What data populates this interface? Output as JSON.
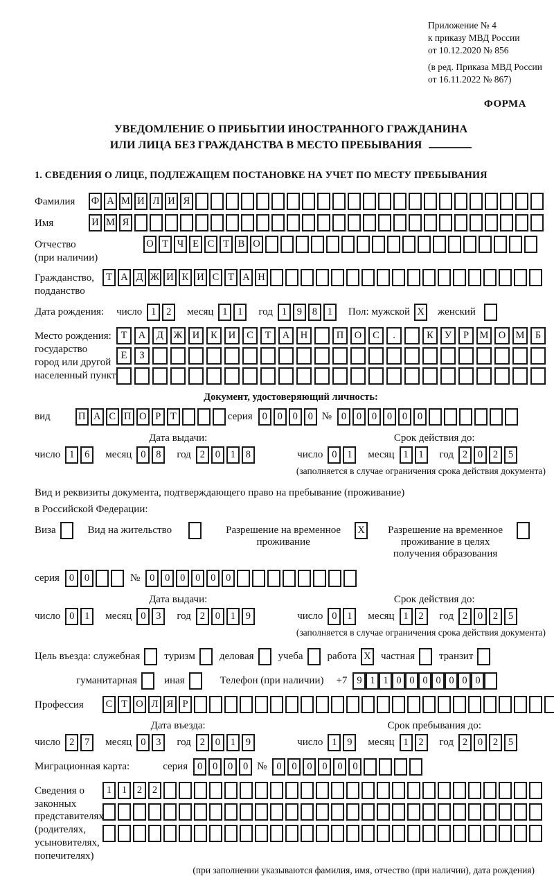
{
  "header": {
    "ref_lines": "Приложение № 4\nк приказу МВД России\nот 10.12.2020 № 856",
    "ref_lines2": "(в ред. Приказа МВД России\nот 16.11.2022 № 867)",
    "form_label": "ФОРМА",
    "title_line1": "УВЕДОМЛЕНИЕ О ПРИБЫТИИ ИНОСТРАННОГО ГРАЖДАНИНА",
    "title_line2": "ИЛИ ЛИЦА БЕЗ ГРАЖДАНСТВА В МЕСТО ПРЕБЫВАНИЯ",
    "section1_heading": "1. СВЕДЕНИЯ О ЛИЦЕ, ПОДЛЕЖАЩЕМ ПОСТАНОВКЕ НА УЧЕТ ПО МЕСТУ ПРЕБЫВАНИЯ"
  },
  "labels": {
    "surname": "Фамилия",
    "firstname": "Имя",
    "patronymic": "Отчество\n(при наличии)",
    "citizenship": "Гражданство,\nподданство",
    "birthdate": "Дата рождения:",
    "day": "число",
    "month": "месяц",
    "year": "год",
    "sex_male": "Пол: мужской",
    "sex_female": "женский",
    "birthplace": "Место рождения:\nгосударство\nгород или другой\nнаселенный пункт",
    "id_doc_heading": "Документ, удостоверяющий личность:",
    "doc_type": "вид",
    "series": "серия",
    "number": "№",
    "issue_date": "Дата выдачи:",
    "valid_until": "Срок действия до:",
    "valid_note": "(заполняется в случае ограничения срока действия документа)",
    "right_doc_line1": "Вид и реквизиты документа, подтверждающего право на пребывание (проживание)",
    "right_doc_line2": "в Российской Федерации:",
    "visa": "Виза",
    "residence_permit": "Вид на жительство",
    "temp_residence": "Разрешение на временное\nпроживание",
    "temp_residence_edu": "Разрешение на временное\nпроживание в целях\nполучения образования",
    "purpose": "Цель въезда: служебная",
    "tourism": "туризм",
    "business": "деловая",
    "study": "учеба",
    "work": "работа",
    "private": "частная",
    "transit": "транзит",
    "humanitarian": "гуманитарная",
    "other": "иная",
    "phone": "Телефон (при наличии)",
    "phone_prefix": "+7",
    "profession": "Профессия",
    "entry_date": "Дата въезда:",
    "stay_until": "Срок пребывания до:",
    "migration_card": "Миграционная карта:",
    "legal_reps": "Сведения о\nзаконных\nпредставителях\n(родителях,\nусыновителях,\nпопечителях)",
    "legal_note": "(при заполнении указываются фамилия, имя, отчество (при наличии), дата рождения)"
  },
  "boxfields": {
    "surname": {
      "value": "ФАМИЛИЯ",
      "count": 30
    },
    "firstname": {
      "value": "ИМЯ",
      "count": 30
    },
    "patronymic": {
      "value": "ОТЧЕСТВО",
      "count": 26
    },
    "citizenship": {
      "value": "ТАДЖИКИСТАН",
      "count": 29
    },
    "sex_male": {
      "value": "X",
      "count": 1
    },
    "sex_female": {
      "value": "",
      "count": 1
    },
    "birthplace1": {
      "value": "ТАДЖИКИСТАН ПОС. КУРМОМБ",
      "count": 24,
      "wide": true
    },
    "birthplace2": {
      "value": "ЕЗ",
      "count": 24,
      "wide": true
    },
    "birthplace3": {
      "value": "",
      "count": 24,
      "wide": true
    },
    "id_type": {
      "value": "ПАСПОРТ",
      "count": 10
    },
    "id_series": {
      "value": "0000",
      "count": 4
    },
    "id_number": {
      "value": "000000",
      "count": 12
    },
    "visa_cb": {
      "value": "",
      "count": 1
    },
    "residence_cb": {
      "value": "",
      "count": 1
    },
    "temp_residence_cb": {
      "value": "X",
      "count": 1
    },
    "temp_residence_edu_cb": {
      "value": "",
      "count": 1
    },
    "permit_series": {
      "value": "00",
      "count": 4
    },
    "permit_number": {
      "value": "000000",
      "count": 14
    },
    "purpose_official": {
      "value": "",
      "count": 1
    },
    "purpose_tourism": {
      "value": "",
      "count": 1
    },
    "purpose_business": {
      "value": "",
      "count": 1
    },
    "purpose_study": {
      "value": "",
      "count": 1
    },
    "purpose_work": {
      "value": "X",
      "count": 1
    },
    "purpose_private": {
      "value": "",
      "count": 1
    },
    "purpose_transit": {
      "value": "",
      "count": 1
    },
    "purpose_humanitarian": {
      "value": "",
      "count": 1
    },
    "purpose_other": {
      "value": "",
      "count": 1
    },
    "phone_digits": {
      "value": "9110000000",
      "count": 11
    },
    "profession": {
      "value": "СТОЛЯР",
      "count": 30
    },
    "mig_series": {
      "value": "0000",
      "count": 4
    },
    "mig_number": {
      "value": "000000",
      "count": 10
    },
    "legal1": {
      "value": "1122",
      "count": 29
    },
    "legal2": {
      "value": "",
      "count": 29
    },
    "legal3": {
      "value": "",
      "count": 29
    }
  },
  "dates": {
    "birth": {
      "d": "12",
      "m": "11",
      "y": "1981"
    },
    "passport_issue": {
      "d": "16",
      "m": "08",
      "y": "2018"
    },
    "passport_until": {
      "d": "01",
      "m": "11",
      "y": "2025"
    },
    "permit_issue": {
      "d": "01",
      "m": "03",
      "y": "2019"
    },
    "permit_until": {
      "d": "01",
      "m": "12",
      "y": "2025"
    },
    "entry": {
      "d": "27",
      "m": "03",
      "y": "2019"
    },
    "stay_until": {
      "d": "19",
      "m": "12",
      "y": "2025"
    }
  }
}
